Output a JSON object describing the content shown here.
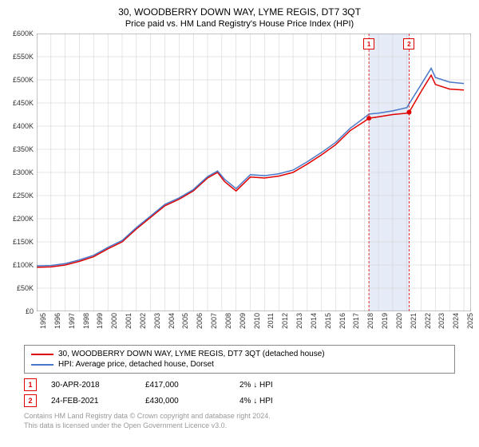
{
  "title": "30, WOODBERRY DOWN WAY, LYME REGIS, DT7 3QT",
  "subtitle": "Price paid vs. HM Land Registry's House Price Index (HPI)",
  "chart": {
    "type": "line",
    "background_color": "#ffffff",
    "grid_color": "#cccccc",
    "xlim": [
      1995,
      2025.5
    ],
    "ylim": [
      0,
      600000
    ],
    "ytick_step": 50000,
    "ytick_labels": [
      "£0",
      "£50K",
      "£100K",
      "£150K",
      "£200K",
      "£250K",
      "£300K",
      "£350K",
      "£400K",
      "£450K",
      "£500K",
      "£550K",
      "£600K"
    ],
    "xtick_years": [
      1995,
      1996,
      1997,
      1998,
      1999,
      2000,
      2001,
      2002,
      2003,
      2004,
      2005,
      2006,
      2007,
      2008,
      2009,
      2010,
      2011,
      2012,
      2013,
      2014,
      2015,
      2016,
      2017,
      2018,
      2019,
      2020,
      2021,
      2022,
      2023,
      2024,
      2025
    ],
    "highlight_band": {
      "start": 2018.33,
      "end": 2021.15,
      "color": "#e6ecf7"
    },
    "series": [
      {
        "name": "property",
        "label": "30, WOODBERRY DOWN WAY, LYME REGIS, DT7 3QT (detached house)",
        "color": "#e00000",
        "line_width": 1.5,
        "data": [
          [
            1995,
            95000
          ],
          [
            1996,
            96000
          ],
          [
            1997,
            100000
          ],
          [
            1998,
            108000
          ],
          [
            1999,
            118000
          ],
          [
            2000,
            135000
          ],
          [
            2001,
            150000
          ],
          [
            2002,
            178000
          ],
          [
            2003,
            203000
          ],
          [
            2004,
            228000
          ],
          [
            2005,
            242000
          ],
          [
            2006,
            260000
          ],
          [
            2007,
            288000
          ],
          [
            2007.7,
            300000
          ],
          [
            2008.2,
            280000
          ],
          [
            2009,
            260000
          ],
          [
            2010,
            290000
          ],
          [
            2011,
            288000
          ],
          [
            2012,
            292000
          ],
          [
            2013,
            300000
          ],
          [
            2014,
            318000
          ],
          [
            2015,
            338000
          ],
          [
            2016,
            360000
          ],
          [
            2017,
            390000
          ],
          [
            2018,
            410000
          ],
          [
            2018.33,
            417000
          ],
          [
            2019,
            420000
          ],
          [
            2020,
            425000
          ],
          [
            2021,
            428000
          ],
          [
            2021.15,
            430000
          ],
          [
            2022,
            475000
          ],
          [
            2022.7,
            510000
          ],
          [
            2023,
            490000
          ],
          [
            2024,
            480000
          ],
          [
            2025,
            478000
          ]
        ]
      },
      {
        "name": "hpi",
        "label": "HPI: Average price, detached house, Dorset",
        "color": "#4a78c8",
        "line_width": 1.5,
        "data": [
          [
            1995,
            98000
          ],
          [
            1996,
            99000
          ],
          [
            1997,
            103000
          ],
          [
            1998,
            111000
          ],
          [
            1999,
            121000
          ],
          [
            2000,
            138000
          ],
          [
            2001,
            153000
          ],
          [
            2002,
            181000
          ],
          [
            2003,
            206000
          ],
          [
            2004,
            231000
          ],
          [
            2005,
            245000
          ],
          [
            2006,
            263000
          ],
          [
            2007,
            291000
          ],
          [
            2007.7,
            303000
          ],
          [
            2008.2,
            285000
          ],
          [
            2009,
            265000
          ],
          [
            2010,
            295000
          ],
          [
            2011,
            293000
          ],
          [
            2012,
            297000
          ],
          [
            2013,
            305000
          ],
          [
            2014,
            323000
          ],
          [
            2015,
            343000
          ],
          [
            2016,
            365000
          ],
          [
            2017,
            395000
          ],
          [
            2018,
            418000
          ],
          [
            2018.33,
            426000
          ],
          [
            2019,
            428000
          ],
          [
            2020,
            433000
          ],
          [
            2021,
            440000
          ],
          [
            2021.15,
            448000
          ],
          [
            2022,
            490000
          ],
          [
            2022.7,
            525000
          ],
          [
            2023,
            505000
          ],
          [
            2024,
            495000
          ],
          [
            2025,
            492000
          ]
        ]
      }
    ],
    "markers": [
      {
        "n": "1",
        "x": 2018.33,
        "y": 417000
      },
      {
        "n": "2",
        "x": 2021.15,
        "y": 430000
      }
    ]
  },
  "legend": {
    "items": [
      {
        "color": "#e00000",
        "label": "30, WOODBERRY DOWN WAY, LYME REGIS, DT7 3QT (detached house)"
      },
      {
        "color": "#4a78c8",
        "label": "HPI: Average price, detached house, Dorset"
      }
    ]
  },
  "marker_table": [
    {
      "n": "1",
      "date": "30-APR-2018",
      "price": "£417,000",
      "pct": "2%",
      "arrow": "↓",
      "vs": "HPI"
    },
    {
      "n": "2",
      "date": "24-FEB-2021",
      "price": "£430,000",
      "pct": "4%",
      "arrow": "↓",
      "vs": "HPI"
    }
  ],
  "footer": {
    "line1": "Contains HM Land Registry data © Crown copyright and database right 2024.",
    "line2": "This data is licensed under the Open Government Licence v3.0."
  }
}
